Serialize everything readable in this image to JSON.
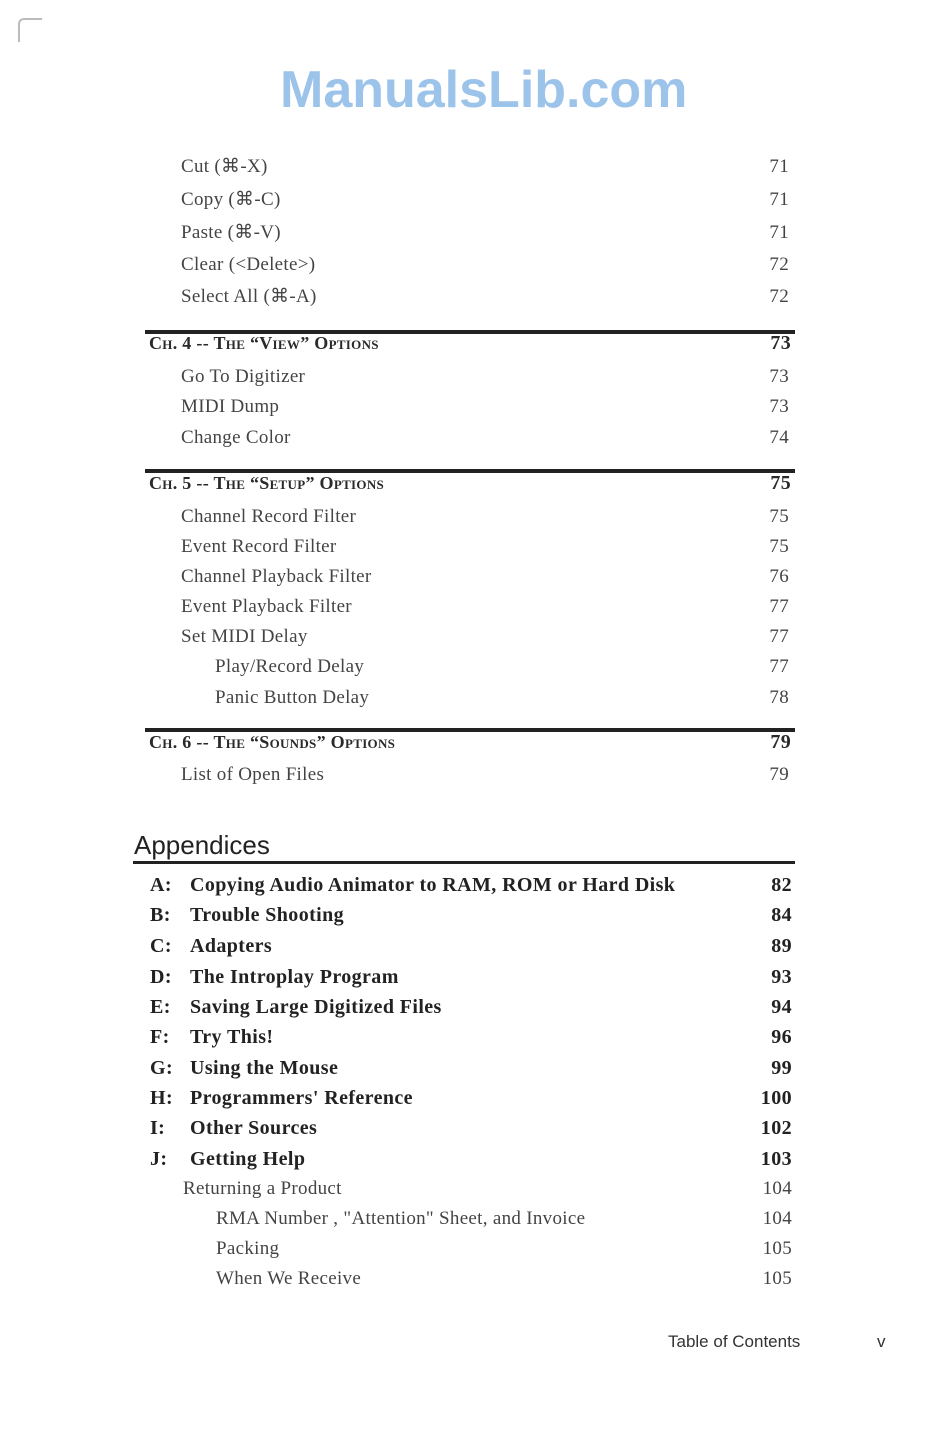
{
  "edit_items": [
    {
      "label": "Cut (⌘-X)",
      "page": "71"
    },
    {
      "label": "Copy (⌘-C)",
      "page": "71"
    },
    {
      "label": "Paste (⌘-V)",
      "page": "71"
    },
    {
      "label": "Clear (<Delete>)",
      "page": "72"
    },
    {
      "label": "Select All (⌘-A)",
      "page": "72"
    }
  ],
  "chapters": [
    {
      "title": "Ch. 4 -- The “View” Options",
      "page": "73",
      "items": [
        {
          "label": "Go To Digitizer",
          "page": "73"
        },
        {
          "label": "MIDI Dump",
          "page": "73"
        },
        {
          "label": "Change Color",
          "page": "74"
        }
      ]
    },
    {
      "title": "Ch. 5 -- The “Setup” Options",
      "page": "75",
      "items": [
        {
          "label": "Channel Record Filter",
          "page": "75"
        },
        {
          "label": "Event Record Filter",
          "page": "75"
        },
        {
          "label": "Channel Playback Filter",
          "page": "76"
        },
        {
          "label": "Event Playback Filter",
          "page": "77"
        },
        {
          "label": "Set MIDI Delay",
          "page": "77"
        },
        {
          "label": "Play/Record Delay",
          "page": "77",
          "level": 2
        },
        {
          "label": "Panic Button Delay",
          "page": "78",
          "level": 2
        }
      ]
    },
    {
      "title": "Ch. 6 -- The “Sounds” Options",
      "page": "79",
      "items": [
        {
          "label": "List of Open Files",
          "page": "79"
        }
      ]
    }
  ],
  "appendices": {
    "heading": "Appendices",
    "items": [
      {
        "letter": "A:",
        "label": "Copying Audio Animator to RAM, ROM or Hard Disk",
        "page": "82"
      },
      {
        "letter": "B:",
        "label": "Trouble Shooting",
        "page": "84"
      },
      {
        "letter": "C:",
        "label": "Adapters",
        "page": "89"
      },
      {
        "letter": "D:",
        "label": "The Introplay Program",
        "page": "93"
      },
      {
        "letter": "E:",
        "label": "Saving Large Digitized Files",
        "page": "94"
      },
      {
        "letter": "F:",
        "label": "Try This!",
        "page": "96"
      },
      {
        "letter": "G:",
        "label": "Using the Mouse",
        "page": "99"
      },
      {
        "letter": "H:",
        "label": "Programmers' Reference",
        "page": "100"
      },
      {
        "letter": "I:",
        "label": "Other Sources",
        "page": "102"
      },
      {
        "letter": "J:",
        "label": "Getting Help",
        "page": "103"
      }
    ],
    "sub_items": [
      {
        "label": "Returning a Product",
        "page": "104"
      },
      {
        "label": "RMA Number , \"Attention\" Sheet, and Invoice",
        "page": "104",
        "level": 2
      },
      {
        "label": "Packing",
        "page": "105",
        "level": 2
      },
      {
        "label": "When We Receive",
        "page": "105",
        "level": 2
      }
    ]
  },
  "footer": {
    "section": "Table of Contents",
    "page_number": "v"
  },
  "watermark": "ManualsLib.com"
}
